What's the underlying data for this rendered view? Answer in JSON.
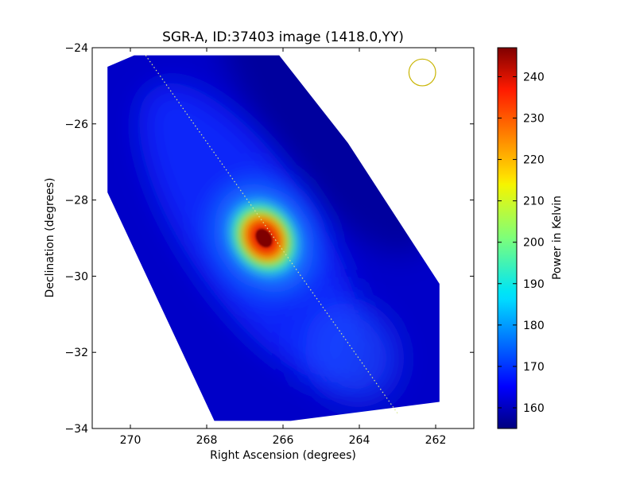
{
  "chart_data": {
    "type": "heatmap",
    "title": "SGR-A, ID:37403 image (1418.0,YY)",
    "xlabel": "Right Ascension (degrees)",
    "ylabel": "Declination (degrees)",
    "xlim": [
      271,
      261
    ],
    "ylim": [
      -34,
      -24
    ],
    "x_ticks": [
      270,
      268,
      266,
      264,
      262
    ],
    "y_ticks": [
      -24,
      -26,
      -28,
      -30,
      -32,
      -34
    ],
    "x_tick_labels": [
      "270",
      "268",
      "266",
      "264",
      "262"
    ],
    "y_tick_labels": [
      "−24",
      "−26",
      "−28",
      "−30",
      "−32",
      "−34"
    ],
    "colormap": "jet",
    "colorbar": {
      "label": "Power in Kelvin",
      "range": [
        155,
        247
      ],
      "ticks": [
        160,
        170,
        180,
        190,
        200,
        210,
        220,
        230,
        240
      ],
      "tick_labels": [
        "160",
        "170",
        "180",
        "190",
        "200",
        "210",
        "220",
        "230",
        "240"
      ]
    },
    "coverage_polygon": [
      [
        270.6,
        -24.5
      ],
      [
        269.9,
        -24.2
      ],
      [
        266.1,
        -24.2
      ],
      [
        264.3,
        -26.5
      ],
      [
        261.9,
        -30.2
      ],
      [
        261.9,
        -33.3
      ],
      [
        265.8,
        -33.8
      ],
      [
        267.8,
        -33.8
      ],
      [
        270.6,
        -27.8
      ]
    ],
    "peak": {
      "ra": 266.5,
      "dec": -29.0,
      "value": 247
    },
    "scan_line": [
      [
        269.6,
        -24.2
      ],
      [
        263.0,
        -33.6
      ]
    ],
    "beam_circle": {
      "ra": 262.35,
      "dec": -24.65,
      "radius_deg": 0.35,
      "color": "#c8b400"
    }
  }
}
